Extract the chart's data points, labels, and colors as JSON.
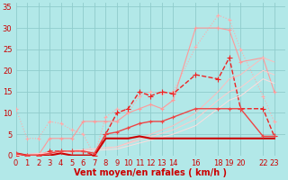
{
  "background_color": "#b2e8e8",
  "grid_color": "#90cccc",
  "xlabel": "Vent moyen/en rafales ( km/h )",
  "xlabel_color": "#cc0000",
  "xlabel_fontsize": 7,
  "ytick_labels": [
    "0",
    "5",
    "10",
    "15",
    "20",
    "25",
    "30",
    "35"
  ],
  "ytick_vals": [
    0,
    5,
    10,
    15,
    20,
    25,
    30,
    35
  ],
  "xtick_labels": [
    "0",
    "1",
    "2",
    "3",
    "4",
    "5",
    "6",
    "7",
    "8",
    "9",
    "10",
    "11",
    "12",
    "13",
    "14",
    "16",
    "18",
    "19",
    "20",
    "22",
    "23"
  ],
  "xtick_vals": [
    0,
    1,
    2,
    3,
    4,
    5,
    6,
    7,
    8,
    9,
    10,
    11,
    12,
    13,
    14,
    16,
    18,
    19,
    20,
    22,
    23
  ],
  "xlim": [
    0,
    24
  ],
  "ylim": [
    0,
    36
  ],
  "tick_color": "#cc0000",
  "tick_fontsize": 6,
  "lines": [
    {
      "x": [
        0,
        1,
        2,
        3,
        4,
        5,
        6,
        7,
        8,
        9,
        10,
        11,
        12,
        13,
        14,
        16,
        18,
        19,
        20,
        22,
        23
      ],
      "y": [
        11,
        4,
        4,
        8,
        7.5,
        6,
        5,
        0,
        9,
        11,
        10,
        14,
        15,
        14.5,
        15,
        25.5,
        33,
        32,
        25,
        14,
        8
      ],
      "color": "#ffaaaa",
      "linewidth": 0.8,
      "marker": "+",
      "markersize": 3,
      "linestyle": ":"
    },
    {
      "x": [
        0,
        1,
        2,
        3,
        4,
        5,
        6,
        7,
        8,
        9,
        10,
        11,
        12,
        13,
        14,
        16,
        18,
        19,
        20,
        22,
        23
      ],
      "y": [
        0,
        0,
        0,
        4,
        4,
        4,
        8,
        8,
        8,
        8,
        10,
        11,
        12,
        11,
        13,
        30,
        30,
        29.5,
        22,
        23,
        15
      ],
      "color": "#ff9999",
      "linewidth": 0.8,
      "marker": "+",
      "markersize": 3,
      "linestyle": "-"
    },
    {
      "x": [
        0,
        1,
        2,
        3,
        4,
        5,
        6,
        7,
        8,
        9,
        10,
        11,
        12,
        13,
        14,
        16,
        18,
        19,
        20,
        22,
        23
      ],
      "y": [
        0,
        0,
        0,
        1,
        1,
        1,
        1,
        0,
        5,
        10,
        11,
        15,
        14,
        15,
        14.5,
        19,
        18,
        23,
        11,
        11,
        4.5
      ],
      "color": "#ee2222",
      "linewidth": 1.0,
      "marker": "+",
      "markersize": 4,
      "linestyle": "--"
    },
    {
      "x": [
        0,
        9,
        14,
        16,
        18,
        19,
        20,
        22,
        23
      ],
      "y": [
        0,
        2,
        7,
        10,
        15,
        18,
        19,
        23,
        22
      ],
      "color": "#ffbbbb",
      "linewidth": 0.7,
      "marker": null,
      "markersize": 0,
      "linestyle": "-"
    },
    {
      "x": [
        0,
        9,
        14,
        16,
        18,
        19,
        20,
        22,
        23
      ],
      "y": [
        0,
        2,
        6,
        8.5,
        13,
        15,
        16,
        20,
        19
      ],
      "color": "#ffcccc",
      "linewidth": 0.7,
      "marker": null,
      "markersize": 0,
      "linestyle": "-"
    },
    {
      "x": [
        0,
        9,
        14,
        16,
        18,
        19,
        20,
        22,
        23
      ],
      "y": [
        0,
        1.5,
        5,
        7,
        11,
        13,
        14,
        18,
        17
      ],
      "color": "#ffdddd",
      "linewidth": 0.7,
      "marker": null,
      "markersize": 0,
      "linestyle": "-"
    },
    {
      "x": [
        0,
        1,
        2,
        3,
        4,
        5,
        6,
        7,
        8,
        9,
        10,
        11,
        12,
        13,
        14,
        16,
        18,
        19,
        20,
        22,
        23
      ],
      "y": [
        0.5,
        0,
        0,
        0,
        0.5,
        0,
        0,
        0,
        4,
        4,
        4,
        4.5,
        4,
        4,
        4,
        4,
        4,
        4,
        4,
        4,
        4
      ],
      "color": "#cc0000",
      "linewidth": 1.5,
      "marker": null,
      "markersize": 0,
      "linestyle": "-"
    },
    {
      "x": [
        0,
        1,
        2,
        3,
        4,
        5,
        6,
        7,
        8,
        9,
        10,
        11,
        12,
        13,
        14,
        16,
        18,
        19,
        20,
        22,
        23
      ],
      "y": [
        0.5,
        0,
        0,
        0.5,
        1,
        1,
        1,
        0.5,
        5,
        5.5,
        6.5,
        7.5,
        8,
        8,
        9,
        11,
        11,
        11,
        11,
        4.5,
        4.5
      ],
      "color": "#ee4444",
      "linewidth": 1.0,
      "marker": "+",
      "markersize": 3.5,
      "linestyle": "-"
    }
  ]
}
